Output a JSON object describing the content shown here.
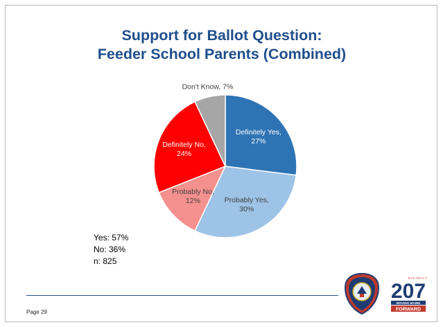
{
  "slide": {
    "title_line1": "Support for Ballot Question:",
    "title_line2": "Feeder School Parents (Combined)",
    "page_label": "Page 29"
  },
  "summary": {
    "yes": "Yes: 57%",
    "no": "No: 36%",
    "n": "n: 825"
  },
  "logo": {
    "district_word": "DISTRICT",
    "number": "207",
    "tagline": "MOVING MAINE",
    "forward": "FORWARD"
  },
  "chart_data": {
    "type": "pie",
    "title": "Support for Ballot Question: Feeder School Parents (Combined)",
    "start_angle_deg": 0,
    "direction": "clockwise",
    "slices": [
      {
        "label": "Definitely Yes",
        "value": 27,
        "text": "Definitely Yes, 27%",
        "color": "#2e74b5",
        "text_color": "#ffffff",
        "label_position": "inside"
      },
      {
        "label": "Probably Yes",
        "value": 30,
        "text": "Probably Yes, 30%",
        "color": "#9dc3e6",
        "text_color": "#404040",
        "label_position": "inside"
      },
      {
        "label": "Probably No",
        "value": 12,
        "text": "Probably No, 12%",
        "color": "#f4908e",
        "text_color": "#404040",
        "label_position": "inside"
      },
      {
        "label": "Definitely No",
        "value": 24,
        "text": "Definitely No, 24%",
        "color": "#ff0000",
        "text_color": "#ffffff",
        "label_position": "inside"
      },
      {
        "label": "Don't Know",
        "value": 7,
        "text": "Don't Know, 7%",
        "color": "#a6a6a6",
        "text_color": "#404040",
        "label_position": "outside"
      }
    ]
  }
}
